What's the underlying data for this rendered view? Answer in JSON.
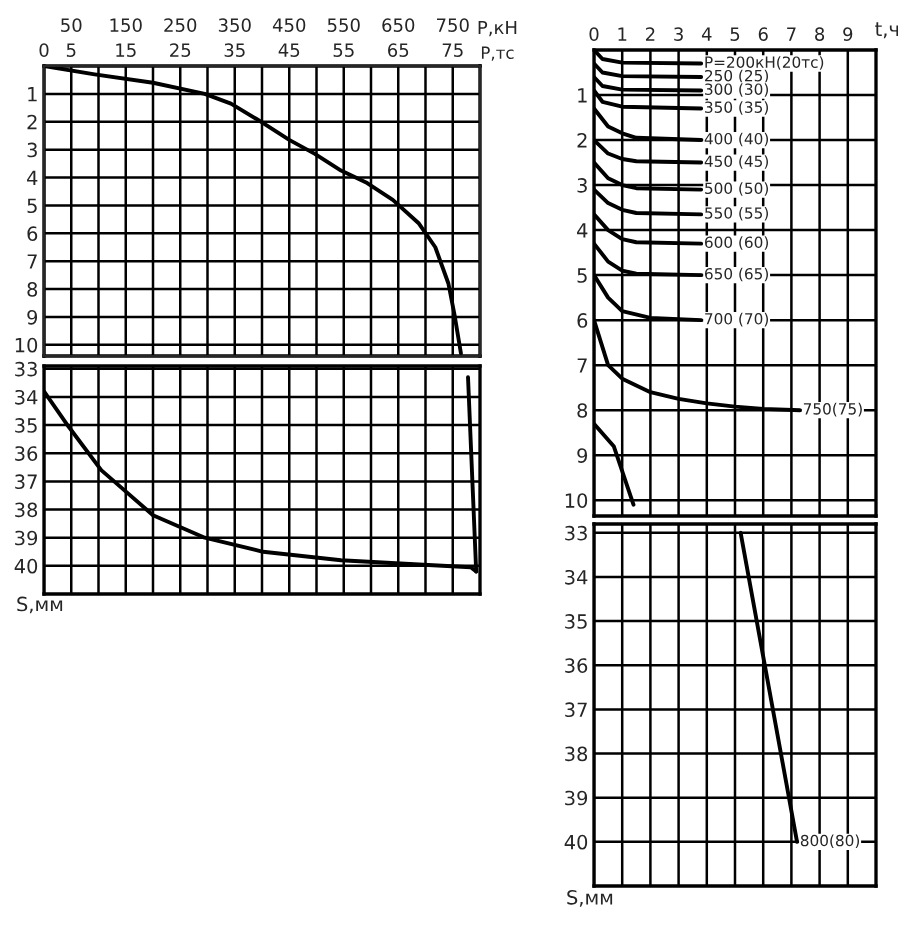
{
  "chart_data": [
    {
      "type": "line",
      "xlabel": "P,кН",
      "x2label": "P,тс",
      "tick_labels": "xy",
      "grid": true,
      "xlim": [
        0,
        800
      ],
      "xticks": [
        {
          "value": 0,
          "label": null
        },
        50,
        {
          "value": 100,
          "label": null
        },
        150,
        {
          "value": 200,
          "label": null
        },
        250,
        {
          "value": 300,
          "label": null
        },
        350,
        {
          "value": 400,
          "label": null
        },
        450,
        {
          "value": 500,
          "label": null
        },
        550,
        {
          "value": 600,
          "label": null
        },
        650,
        {
          "value": 700,
          "label": null
        },
        750
      ],
      "x2lim": [
        0,
        80
      ],
      "x2ticks": [
        0,
        5,
        15,
        25,
        35,
        45,
        55,
        65,
        75
      ],
      "ylim": [
        10.4,
        0
      ],
      "yticks": [
        1,
        2,
        3,
        4,
        5,
        6,
        7,
        8,
        9,
        10
      ],
      "series": [
        {
          "color": "#000000",
          "x": [
            0,
            93,
            200,
            295,
            343,
            390,
            450,
            497,
            545,
            593,
            640,
            688,
            718,
            742,
            753,
            765
          ],
          "values": [
            0,
            0.3,
            0.6,
            1.0,
            1.35,
            1.9,
            2.65,
            3.15,
            3.75,
            4.2,
            4.8,
            5.65,
            6.5,
            7.8,
            8.9,
            10.3
          ]
        }
      ]
    },
    {
      "type": "line",
      "ylabel": "S,мм",
      "tick_labels": "y",
      "grid": true,
      "xlim": [
        0,
        800
      ],
      "xticks": [
        0,
        50,
        100,
        150,
        200,
        250,
        300,
        350,
        400,
        450,
        500,
        550,
        600,
        650,
        700,
        750
      ],
      "ylim": [
        41,
        32.9
      ],
      "yticks": [
        33,
        34,
        35,
        36,
        37,
        38,
        39,
        40
      ],
      "series": [
        {
          "color": "#000000",
          "x": [
            778,
            793
          ],
          "values": [
            33.3,
            40.2
          ]
        },
        {
          "color": "#000000",
          "x": [
            0,
            45,
            105,
            200,
            295,
            402,
            545,
            688,
            783,
            793
          ],
          "values": [
            33.8,
            35.05,
            36.6,
            38.2,
            39.0,
            39.5,
            39.8,
            39.95,
            40.05,
            40.2
          ]
        }
      ]
    },
    {
      "type": "line",
      "xlabel": "t,ч",
      "tick_labels": "xy",
      "grid": true,
      "xlim": [
        0,
        10
      ],
      "xticks": [
        0,
        1,
        2,
        3,
        4,
        5,
        6,
        7,
        8,
        9
      ],
      "ylim": [
        10.35,
        0
      ],
      "yticks": [
        1,
        2,
        3,
        4,
        5,
        6,
        7,
        8,
        9,
        10
      ],
      "series": [
        {
          "color": "#000000",
          "x": [
            0,
            0.3,
            1,
            3.8
          ],
          "values": [
            0,
            0.2,
            0.28,
            0.3
          ]
        },
        {
          "color": "#000000",
          "x": [
            0,
            0.3,
            1,
            3.8
          ],
          "values": [
            0.3,
            0.5,
            0.58,
            0.6
          ]
        },
        {
          "color": "#000000",
          "x": [
            0,
            0.3,
            1,
            3.8
          ],
          "values": [
            0.6,
            0.8,
            0.88,
            0.9
          ]
        },
        {
          "color": "#000000",
          "x": [
            0,
            0.3,
            1,
            3.8
          ],
          "values": [
            0.9,
            1.15,
            1.26,
            1.3
          ]
        },
        {
          "color": "#000000",
          "x": [
            0,
            0.5,
            1,
            1.5,
            3.8
          ],
          "values": [
            1.3,
            1.7,
            1.85,
            1.95,
            2.0
          ]
        },
        {
          "color": "#000000",
          "x": [
            0,
            0.5,
            1,
            1.5,
            3.8
          ],
          "values": [
            2.0,
            2.3,
            2.42,
            2.47,
            2.5
          ]
        },
        {
          "color": "#000000",
          "x": [
            0,
            0.5,
            1,
            1.5,
            3.8
          ],
          "values": [
            2.5,
            2.85,
            3.0,
            3.07,
            3.1
          ]
        },
        {
          "color": "#000000",
          "x": [
            0,
            0.5,
            1,
            1.5,
            3.8
          ],
          "values": [
            3.1,
            3.4,
            3.55,
            3.62,
            3.65
          ]
        },
        {
          "color": "#000000",
          "x": [
            0,
            0.5,
            1,
            1.5,
            3.8
          ],
          "values": [
            3.65,
            4.0,
            4.2,
            4.27,
            4.3
          ]
        },
        {
          "color": "#000000",
          "x": [
            0,
            0.5,
            1,
            1.5,
            3.8
          ],
          "values": [
            4.3,
            4.7,
            4.9,
            4.97,
            5.0
          ]
        },
        {
          "color": "#000000",
          "x": [
            0,
            0.5,
            1,
            2,
            3.8
          ],
          "values": [
            5.0,
            5.5,
            5.8,
            5.95,
            6.0
          ]
        },
        {
          "color": "#000000",
          "x": [
            0,
            0.5,
            1,
            2,
            3,
            4,
            5,
            6,
            7.3
          ],
          "values": [
            6.0,
            7.0,
            7.3,
            7.6,
            7.75,
            7.85,
            7.92,
            7.97,
            8.0
          ]
        },
        {
          "color": "#000000",
          "x": [
            0,
            0.7,
            1.4
          ],
          "values": [
            8.3,
            8.8,
            10.1
          ]
        }
      ],
      "annotations": [
        {
          "text": "P=200кН(20тс)",
          "x": 3.8,
          "y": 0.3
        },
        {
          "text": "250 (25)",
          "x": 3.8,
          "y": 0.6
        },
        {
          "text": "300 (30)",
          "x": 3.8,
          "y": 0.9
        },
        {
          "text": "350 (35)",
          "x": 3.8,
          "y": 1.3
        },
        {
          "text": "400 (40)",
          "x": 3.8,
          "y": 2.0
        },
        {
          "text": "450 (45)",
          "x": 3.8,
          "y": 2.5
        },
        {
          "text": "500 (50)",
          "x": 3.8,
          "y": 3.1
        },
        {
          "text": "550 (55)",
          "x": 3.8,
          "y": 3.65
        },
        {
          "text": "600 (60)",
          "x": 3.8,
          "y": 4.3
        },
        {
          "text": "650 (65)",
          "x": 3.8,
          "y": 5.0
        },
        {
          "text": "700 (70)",
          "x": 3.8,
          "y": 6.0
        },
        {
          "text": "750(75)",
          "x": 7.3,
          "y": 8.0
        }
      ]
    },
    {
      "type": "line",
      "ylabel": "S,мм",
      "tick_labels": "y",
      "grid": true,
      "xlim": [
        0,
        10
      ],
      "xticks": [
        0,
        1,
        2,
        3,
        4,
        5,
        6,
        7,
        8,
        9
      ],
      "ylim": [
        41,
        32.8
      ],
      "yticks": [
        33,
        34,
        35,
        36,
        37,
        38,
        39,
        40
      ],
      "series": [
        {
          "color": "#000000",
          "x": [
            5.2,
            7.2
          ],
          "values": [
            33.0,
            40.0
          ]
        }
      ],
      "annotations": [
        {
          "text": "800(80)",
          "x": 7.2,
          "y": 40.0
        }
      ]
    }
  ]
}
